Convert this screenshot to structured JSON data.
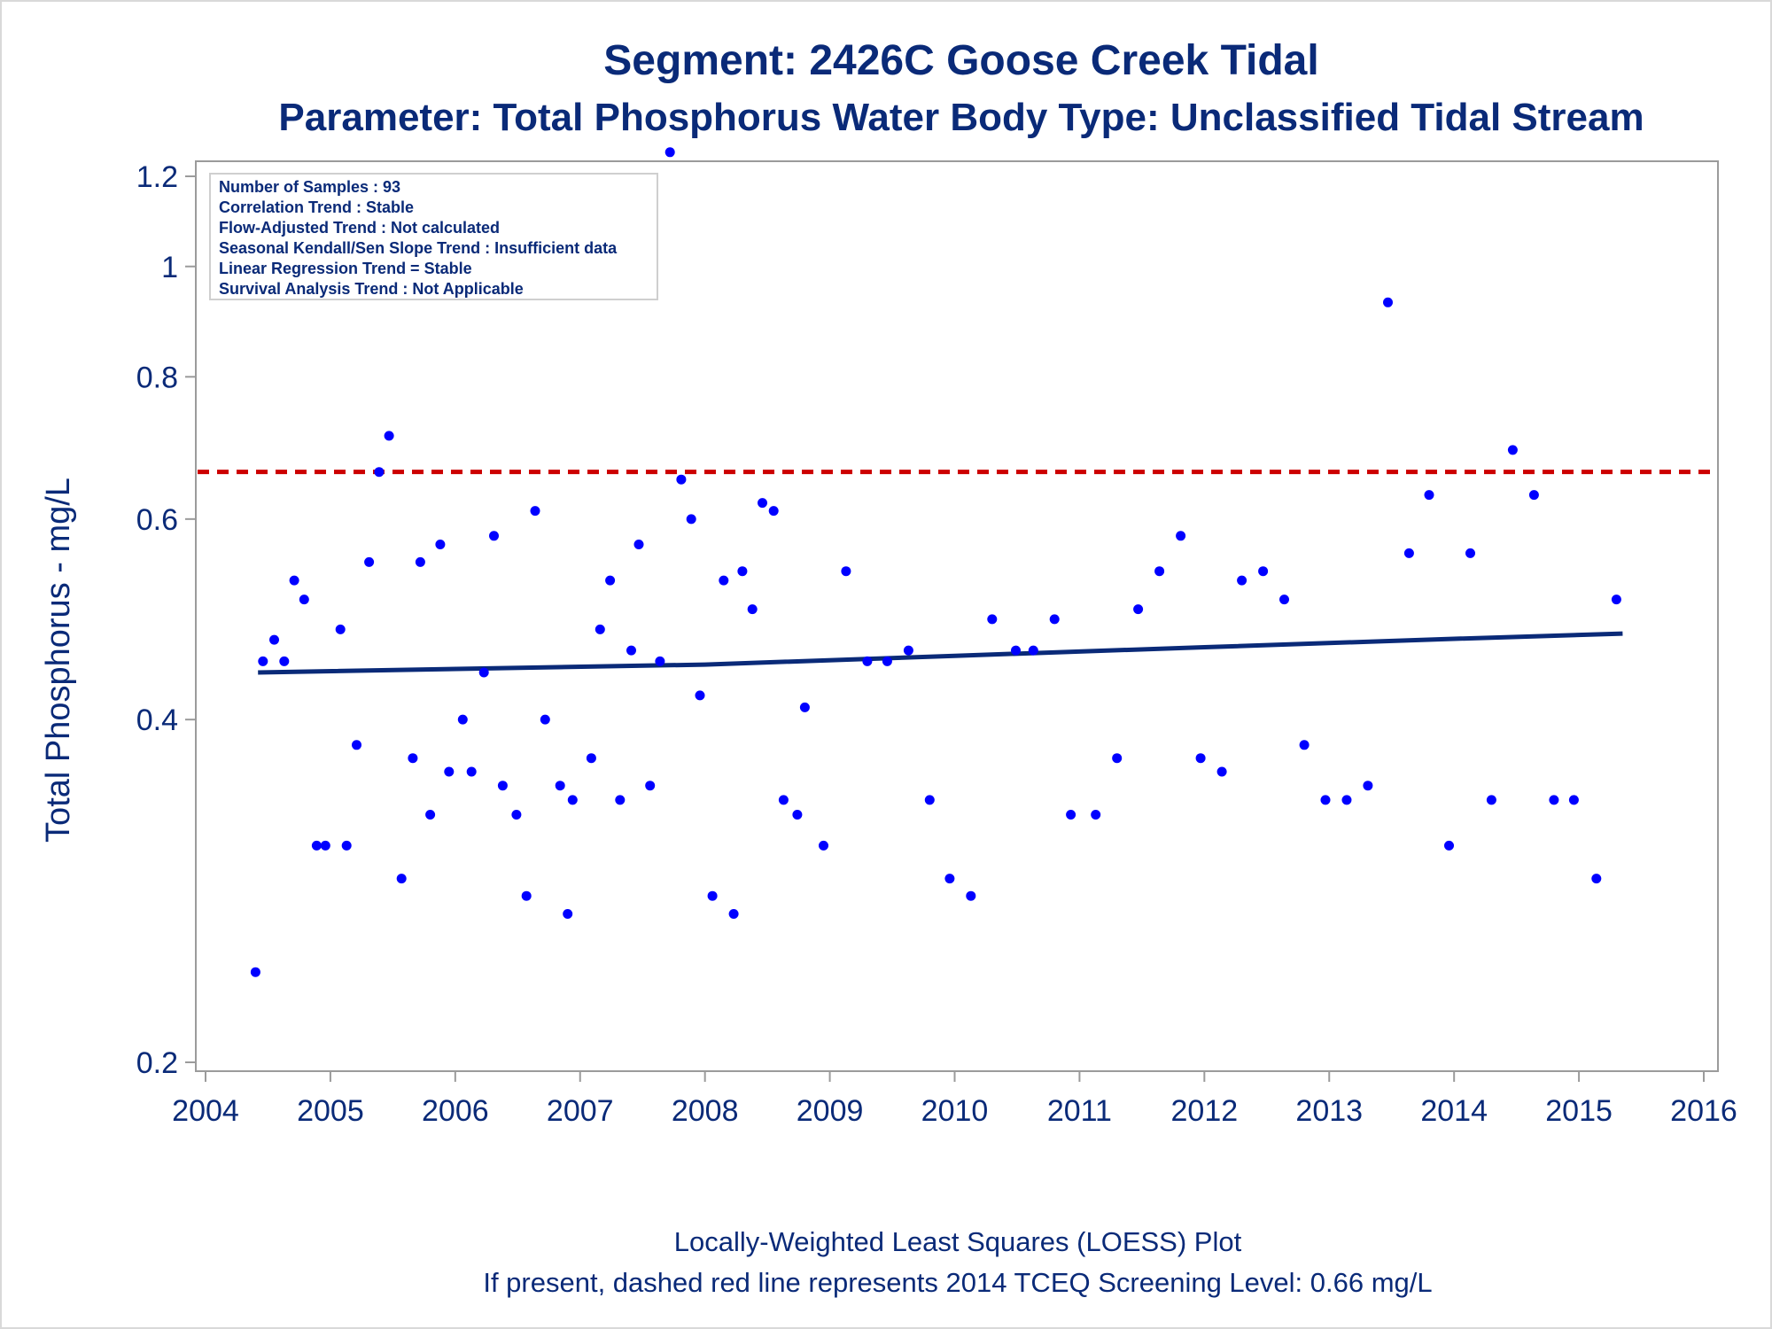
{
  "chart_data": {
    "type": "scatter",
    "title": "Segment: 2426C  Goose Creek Tidal",
    "subtitle": "Parameter: Total Phosphorus   Water Body Type: Unclassified Tidal Stream",
    "xlabel": "",
    "ylabel": "Total Phosphorus - mg/L",
    "xlim": [
      2004,
      2016
    ],
    "ylim": [
      0.2,
      1.25
    ],
    "yscale": "log",
    "xticks": [
      "2004",
      "2005",
      "2006",
      "2007",
      "2008",
      "2009",
      "2010",
      "2011",
      "2012",
      "2013",
      "2014",
      "2015",
      "2016"
    ],
    "yticks": [
      {
        "value": 0.2,
        "label": "0.2"
      },
      {
        "value": 0.4,
        "label": "0.4"
      },
      {
        "value": 0.6,
        "label": "0.6"
      },
      {
        "value": 0.8,
        "label": "0.8"
      },
      {
        "value": 1.0,
        "label": "1"
      },
      {
        "value": 1.2,
        "label": "1.2"
      }
    ],
    "grid": false,
    "colors": {
      "text": "#0a2a78",
      "points": "#0000ff",
      "trend": "#0a2a78",
      "screening": "#cc0000",
      "axis": "#9b9b9b"
    },
    "info_box": [
      "Number of Samples : 93",
      "Correlation Trend : Stable",
      "Flow-Adjusted Trend : Not calculated",
      "Seasonal Kendall/Sen Slope Trend : Insufficient data",
      "Linear Regression Trend = Stable",
      "Survival Analysis Trend : Not Applicable"
    ],
    "screening_level": 0.66,
    "loess": [
      [
        2004.42,
        0.44
      ],
      [
        2008.0,
        0.447
      ],
      [
        2010.0,
        0.455
      ],
      [
        2012.0,
        0.463
      ],
      [
        2014.0,
        0.471
      ],
      [
        2015.35,
        0.476
      ]
    ],
    "points": [
      [
        2004.4,
        0.24
      ],
      [
        2004.46,
        0.45
      ],
      [
        2004.55,
        0.47
      ],
      [
        2004.63,
        0.45
      ],
      [
        2004.71,
        0.53
      ],
      [
        2004.79,
        0.51
      ],
      [
        2004.89,
        0.31
      ],
      [
        2004.96,
        0.31
      ],
      [
        2005.08,
        0.48
      ],
      [
        2005.13,
        0.31
      ],
      [
        2005.21,
        0.38
      ],
      [
        2005.31,
        0.55
      ],
      [
        2005.39,
        0.66
      ],
      [
        2005.47,
        0.71
      ],
      [
        2005.57,
        0.29
      ],
      [
        2005.66,
        0.37
      ],
      [
        2005.72,
        0.55
      ],
      [
        2005.8,
        0.33
      ],
      [
        2005.88,
        0.57
      ],
      [
        2005.95,
        0.36
      ],
      [
        2006.06,
        0.4
      ],
      [
        2006.13,
        0.36
      ],
      [
        2006.23,
        0.44
      ],
      [
        2006.31,
        0.58
      ],
      [
        2006.38,
        0.35
      ],
      [
        2006.49,
        0.33
      ],
      [
        2006.57,
        0.28
      ],
      [
        2006.64,
        0.61
      ],
      [
        2006.72,
        0.4
      ],
      [
        2006.84,
        0.35
      ],
      [
        2006.9,
        0.27
      ],
      [
        2006.94,
        0.34
      ],
      [
        2007.09,
        0.37
      ],
      [
        2007.16,
        0.48
      ],
      [
        2007.24,
        0.53
      ],
      [
        2007.32,
        0.34
      ],
      [
        2007.41,
        0.46
      ],
      [
        2007.47,
        0.57
      ],
      [
        2007.56,
        0.35
      ],
      [
        2007.64,
        0.45
      ],
      [
        2007.72,
        1.26
      ],
      [
        2007.81,
        0.65
      ],
      [
        2007.89,
        0.6
      ],
      [
        2007.96,
        0.42
      ],
      [
        2008.06,
        0.28
      ],
      [
        2008.15,
        0.53
      ],
      [
        2008.23,
        0.27
      ],
      [
        2008.3,
        0.54
      ],
      [
        2008.38,
        0.5
      ],
      [
        2008.46,
        0.62
      ],
      [
        2008.55,
        0.61
      ],
      [
        2008.63,
        0.34
      ],
      [
        2008.74,
        0.33
      ],
      [
        2008.8,
        0.41
      ],
      [
        2008.95,
        0.31
      ],
      [
        2009.13,
        0.54
      ],
      [
        2009.3,
        0.45
      ],
      [
        2009.46,
        0.45
      ],
      [
        2009.63,
        0.46
      ],
      [
        2009.8,
        0.34
      ],
      [
        2009.96,
        0.29
      ],
      [
        2010.13,
        0.28
      ],
      [
        2010.3,
        0.49
      ],
      [
        2010.49,
        0.46
      ],
      [
        2010.63,
        0.46
      ],
      [
        2010.8,
        0.49
      ],
      [
        2010.93,
        0.33
      ],
      [
        2011.13,
        0.33
      ],
      [
        2011.3,
        0.37
      ],
      [
        2011.47,
        0.5
      ],
      [
        2011.64,
        0.54
      ],
      [
        2011.81,
        0.58
      ],
      [
        2011.97,
        0.37
      ],
      [
        2012.14,
        0.36
      ],
      [
        2012.3,
        0.53
      ],
      [
        2012.47,
        0.54
      ],
      [
        2012.64,
        0.51
      ],
      [
        2012.8,
        0.38
      ],
      [
        2012.97,
        0.34
      ],
      [
        2013.14,
        0.34
      ],
      [
        2013.31,
        0.35
      ],
      [
        2013.47,
        0.93
      ],
      [
        2013.64,
        0.56
      ],
      [
        2013.8,
        0.63
      ],
      [
        2013.96,
        0.31
      ],
      [
        2014.13,
        0.56
      ],
      [
        2014.3,
        0.34
      ],
      [
        2014.47,
        0.69
      ],
      [
        2014.64,
        0.63
      ],
      [
        2014.8,
        0.34
      ],
      [
        2014.96,
        0.34
      ],
      [
        2015.14,
        0.29
      ],
      [
        2015.3,
        0.51
      ]
    ],
    "footnote1": "Locally-Weighted Least Squares (LOESS) Plot",
    "footnote2": "If present, dashed red line represents 2014 TCEQ Screening Level: 0.66 mg/L"
  }
}
